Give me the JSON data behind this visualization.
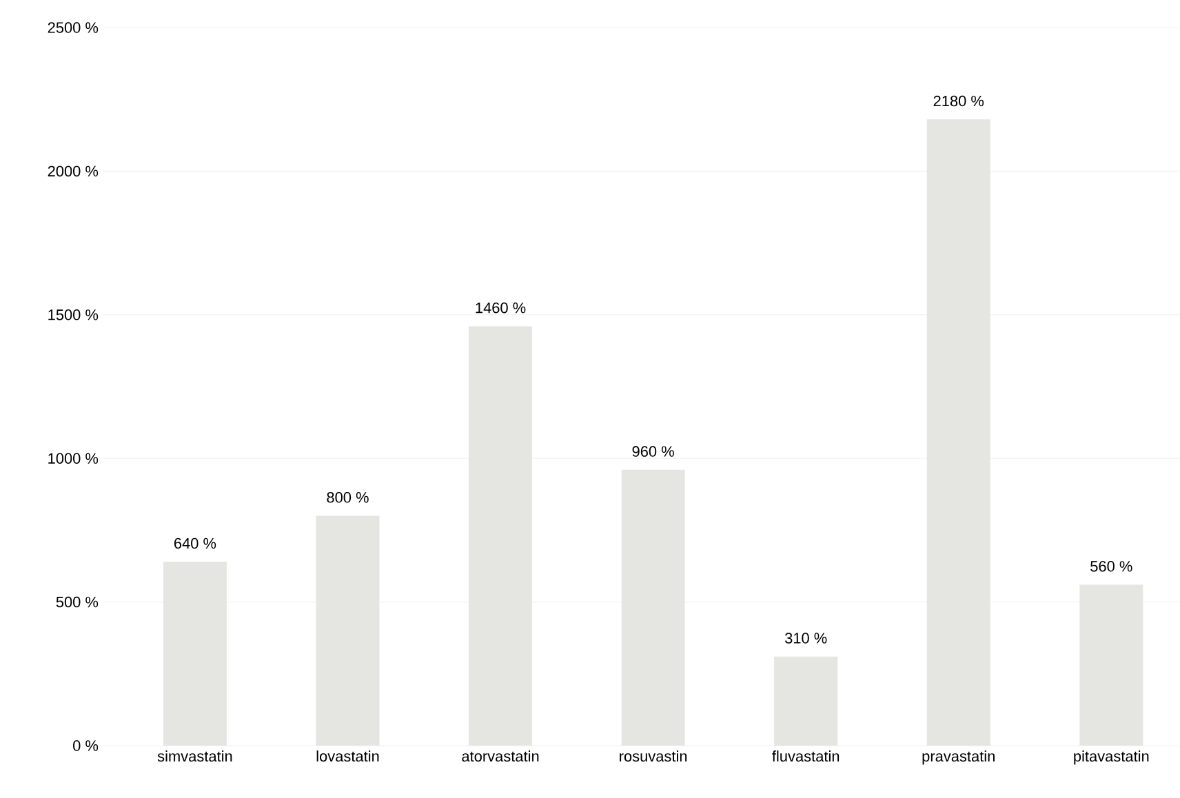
{
  "chart_data": {
    "type": "bar",
    "categories": [
      "simvastatin",
      "lovastatin",
      "atorvastatin",
      "rosuvastin",
      "fluvastatin",
      "pravastatin",
      "pitavastatin"
    ],
    "values": [
      640,
      800,
      1460,
      960,
      310,
      2180,
      560
    ],
    "value_labels": [
      "640 %",
      "800 %",
      "1460 %",
      "960 %",
      "310 %",
      "2180 %",
      "560 %"
    ],
    "color": "#e5e5e1",
    "ylim": [
      0,
      2500
    ],
    "yticks": [
      {
        "value": 0,
        "label": "0 %"
      },
      {
        "value": 500,
        "label": "500 %"
      },
      {
        "value": 1000,
        "label": "1000 %"
      },
      {
        "value": 1500,
        "label": "1500 %"
      },
      {
        "value": 2000,
        "label": "2000 %"
      },
      {
        "value": 2500,
        "label": "2500 %"
      }
    ],
    "grid": "y"
  }
}
